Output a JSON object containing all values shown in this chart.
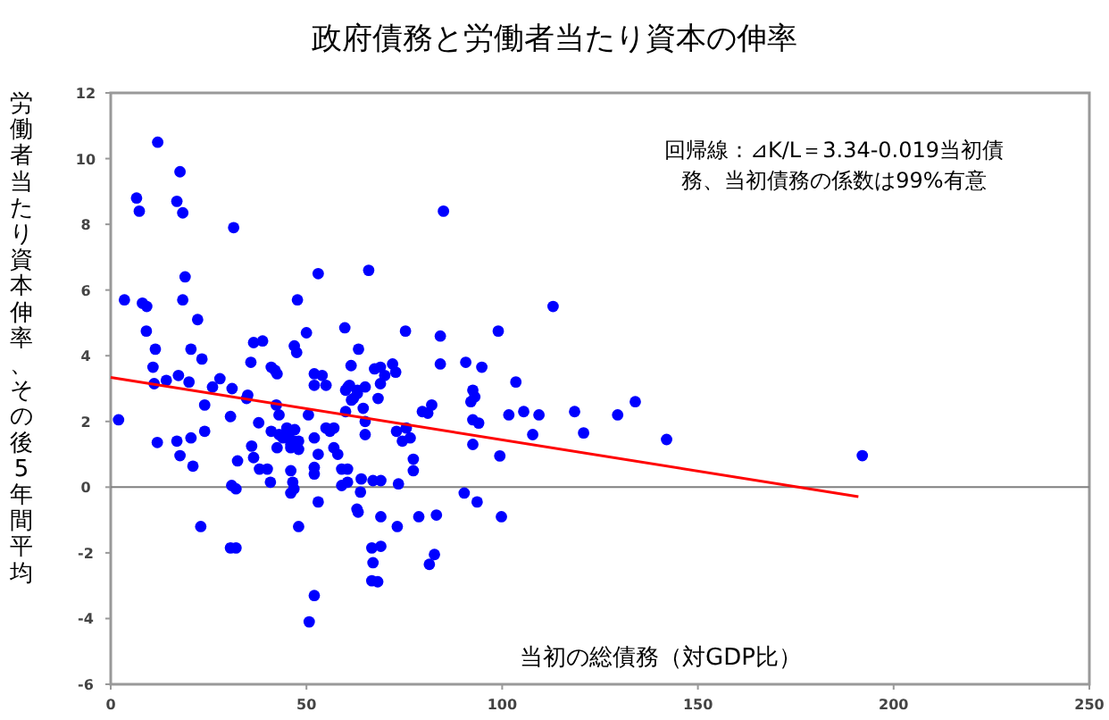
{
  "chart_data": {
    "type": "scatter",
    "title": "政府債務と労働者当たり資本の伸率",
    "xlabel": "当初の総債務（対GDP比）",
    "ylabel": "労働者当たり資本伸率、その後5年間平均",
    "annotations": [
      "回帰線：⊿K/L＝3.34-0.019当初債務、当初債務の係数は99%有意"
    ],
    "xlim": [
      0,
      250
    ],
    "xticks": [
      0,
      50,
      100,
      150,
      200,
      250
    ],
    "ylim": [
      -6,
      12
    ],
    "yticks": [
      -6,
      -4,
      -2,
      0,
      2,
      4,
      6,
      8,
      10,
      12
    ],
    "grid": false,
    "ref_lines": [
      {
        "axis": "y",
        "value": 0,
        "color": "#808080"
      }
    ],
    "series": [
      {
        "type": "scatter",
        "color": "#0000ff",
        "marker": "circle",
        "x": [
          12,
          6.6,
          7.3,
          17.7,
          16.9,
          18.4,
          31.4,
          3.5,
          8.1,
          9.2,
          19,
          18.4,
          22.2,
          9.1,
          11.4,
          20.5,
          23.3,
          10.8,
          14.2,
          17.3,
          20,
          26,
          27.9,
          31,
          35.8,
          36.5,
          38.8,
          41,
          42,
          42.5,
          46.9,
          47.5,
          47.7,
          50,
          53,
          52,
          54,
          52,
          55,
          59.8,
          61.4,
          63.3,
          65.9,
          60,
          85,
          113,
          75.3,
          84.2,
          99,
          67.4,
          68.9,
          72,
          72.8,
          70,
          84.2,
          90.7,
          94.8,
          103.5,
          63,
          2,
          11.1,
          11.9,
          16.9,
          17.7,
          20.5,
          21,
          24,
          24,
          23,
          30.6,
          30.9,
          32,
          30.6,
          32,
          32.4,
          34.7,
          35,
          37.8,
          36,
          36.5,
          38,
          40,
          40.8,
          42.3,
          43,
          41,
          43,
          42.5,
          44,
          45,
          46,
          45.5,
          47,
          46,
          48,
          47,
          48,
          46,
          46.5,
          46.8,
          46,
          48,
          52,
          50.7,
          53,
          52,
          52,
          52,
          53,
          50.5,
          55,
          56,
          57,
          57,
          58,
          59,
          60.5,
          59,
          60.5,
          62.9,
          61,
          62,
          60,
          64.5,
          65,
          65,
          66.7,
          66.7,
          60.6,
          61.5,
          63,
          65,
          68.9,
          68.3,
          73,
          74.5,
          75.5,
          76.5,
          77.3,
          77.3,
          79.6,
          82,
          81,
          92.5,
          93,
          92,
          92.5,
          94,
          92.5,
          99.4,
          101.7,
          105.5,
          107.8,
          109.4,
          118.5,
          120.8,
          129.5,
          134,
          142,
          192,
          64,
          67,
          69,
          73.5,
          63.8,
          90.3,
          93.6,
          63.2,
          69,
          73.2,
          78.7,
          83.2,
          82.7,
          99.8,
          69,
          67,
          81.4,
          68.2
        ],
        "values": [
          10.5,
          8.8,
          8.4,
          9.6,
          8.7,
          8.35,
          7.9,
          5.7,
          5.6,
          5.5,
          6.4,
          5.7,
          5.1,
          4.75,
          4.2,
          4.2,
          3.9,
          3.65,
          3.25,
          3.4,
          3.2,
          3.05,
          3.3,
          3,
          3.8,
          4.4,
          4.45,
          3.65,
          3.55,
          3.45,
          4.3,
          4.1,
          5.7,
          4.7,
          6.5,
          3.45,
          3.4,
          3.1,
          3.1,
          4.85,
          3.7,
          4.2,
          6.6,
          2.95,
          8.4,
          5.5,
          4.75,
          4.6,
          4.75,
          3.6,
          3.65,
          3.75,
          3.5,
          3.4,
          3.75,
          3.8,
          3.65,
          3.2,
          2.95,
          2.05,
          3.15,
          1.36,
          1.4,
          0.96,
          1.5,
          0.64,
          2.5,
          1.7,
          -1.2,
          2.15,
          0.05,
          -0.05,
          -1.85,
          -1.85,
          0.8,
          2.7,
          2.8,
          1.96,
          1.25,
          0.9,
          0.55,
          0.55,
          0.15,
          2.5,
          2.2,
          1.7,
          1.6,
          1.2,
          1.5,
          1.8,
          1.3,
          1.6,
          1.4,
          1.2,
          1.4,
          1.75,
          1.15,
          0.5,
          0.15,
          -0.05,
          -0.18,
          -1.2,
          -3.3,
          -4.1,
          -0.45,
          0.6,
          0.4,
          1.5,
          1,
          2.2,
          1.8,
          1.7,
          1.8,
          1.2,
          1,
          0.55,
          0.55,
          0.05,
          0.15,
          -0.67,
          3.1,
          2.7,
          2.3,
          2.4,
          2,
          1.6,
          -1.85,
          -2.85,
          3.05,
          2.65,
          2.85,
          3.05,
          3.15,
          2.7,
          1.7,
          1.4,
          1.8,
          1.5,
          0.85,
          0.5,
          2.3,
          2.5,
          2.25,
          2.95,
          2.75,
          2.6,
          2.05,
          1.95,
          1.3,
          0.95,
          2.2,
          2.3,
          1.6,
          2.2,
          2.3,
          1.65,
          2.2,
          2.6,
          1.45,
          0.96,
          0.25,
          0.2,
          0.2,
          0.1,
          -0.15,
          -0.18,
          -0.45,
          -0.76,
          -0.9,
          -1.2,
          -0.9,
          -0.85,
          -2.05,
          -0.9,
          -1.8,
          -2.3,
          -2.35,
          -2.88
        ]
      },
      {
        "type": "line",
        "color": "#ff0000",
        "x": [
          0,
          191
        ],
        "values": [
          3.34,
          -0.29
        ],
        "marker": "none"
      }
    ]
  }
}
